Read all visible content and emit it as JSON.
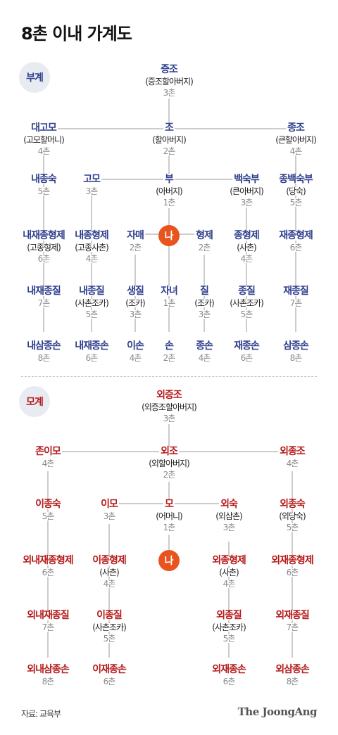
{
  "title": "8촌 이내 가계도",
  "paternal": {
    "label": "부계",
    "nodes": {
      "jeungjo": {
        "name": "증조",
        "sub": "(증조할아버지)",
        "degree": "3촌"
      },
      "daegomo": {
        "name": "대고모",
        "sub": "(고모할머니)",
        "degree": "4촌"
      },
      "jo": {
        "name": "조",
        "sub": "(할아버지)",
        "degree": "2촌"
      },
      "jongjo": {
        "name": "종조",
        "sub": "(큰할아버지)",
        "degree": "4촌"
      },
      "naejongsuk": {
        "name": "내종숙",
        "degree": "5촌"
      },
      "gomo": {
        "name": "고모",
        "degree": "3촌"
      },
      "bu": {
        "name": "부",
        "sub": "(아버지)",
        "degree": "1촌"
      },
      "baeksukbu": {
        "name": "백숙부",
        "sub": "(큰아버지)",
        "degree": "3촌"
      },
      "jongbaeksukbu": {
        "name": "종백숙부",
        "sub": "(당숙)",
        "degree": "5촌"
      },
      "naejaejonghyeongje": {
        "name": "내재종형제",
        "sub": "(고종형제)",
        "degree": "6촌"
      },
      "naejonghyeongje": {
        "name": "내종형제",
        "sub": "(고종사촌)",
        "degree": "4촌"
      },
      "jamae": {
        "name": "자매",
        "degree": "2촌"
      },
      "me": "나",
      "hyeongje": {
        "name": "형제",
        "degree": "2촌"
      },
      "jonghyeongje": {
        "name": "종형제",
        "sub": "(사촌)",
        "degree": "4촌"
      },
      "jaejonghyeongje": {
        "name": "재종형제",
        "degree": "6촌"
      },
      "naejongjil_7": {
        "name": "내재종질",
        "degree": "7촌"
      },
      "naejongjil": {
        "name": "내종질",
        "sub": "(사촌조카)",
        "degree": "5촌"
      },
      "saengjil": {
        "name": "생질",
        "sub": "(조카)",
        "degree": "3촌"
      },
      "janyeo": {
        "name": "자녀",
        "degree": "1촌"
      },
      "jil": {
        "name": "질",
        "sub": "(조카)",
        "degree": "3촌"
      },
      "jongjil": {
        "name": "종질",
        "sub": "(사촌조카)",
        "degree": "5촌"
      },
      "jaejongjil": {
        "name": "재종질",
        "degree": "7촌"
      },
      "naesamjongson": {
        "name": "내삼종손",
        "degree": "8촌"
      },
      "naejaejongson": {
        "name": "내재종손",
        "degree": "6촌"
      },
      "ison": {
        "name": "이손",
        "degree": "4촌"
      },
      "son": {
        "name": "손",
        "degree": "2촌"
      },
      "jongson": {
        "name": "종손",
        "degree": "4촌"
      },
      "jaejongson": {
        "name": "재종손",
        "degree": "6촌"
      },
      "samjongson": {
        "name": "삼종손",
        "degree": "8촌"
      }
    }
  },
  "maternal": {
    "label": "모계",
    "nodes": {
      "oejeungjo": {
        "name": "외증조",
        "sub": "(외증조할아버지)",
        "degree": "3촌"
      },
      "jonimo": {
        "name": "존이모",
        "degree": "4촌"
      },
      "oejo": {
        "name": "외조",
        "sub": "(외할아버지)",
        "degree": "2촌"
      },
      "oejongjo": {
        "name": "외종조",
        "degree": "4촌"
      },
      "ijongsuk": {
        "name": "이종숙",
        "degree": "5촌"
      },
      "imo": {
        "name": "이모",
        "degree": "3촌"
      },
      "mo": {
        "name": "모",
        "sub": "(어머니)",
        "degree": "1촌"
      },
      "oesuk": {
        "name": "외숙",
        "sub": "(외삼촌)",
        "degree": "3촌"
      },
      "oejongsuk": {
        "name": "외종숙",
        "sub": "(외당숙)",
        "degree": "5촌"
      },
      "oenaejaejonghyeongje": {
        "name": "외내재종형제",
        "degree": "6촌"
      },
      "ijonghyeongje": {
        "name": "이종형제",
        "sub": "(사촌)",
        "degree": "4촌"
      },
      "me": "나",
      "oejonghyeongje": {
        "name": "외종형제",
        "sub": "(사촌)",
        "degree": "4촌"
      },
      "oejaejonghyeongje": {
        "name": "외재종형제",
        "degree": "6촌"
      },
      "oenaejaejongjil": {
        "name": "외내재종질",
        "degree": "7촌"
      },
      "ijongjil": {
        "name": "이종질",
        "sub": "(사촌조카)",
        "degree": "5촌"
      },
      "oejongjil": {
        "name": "외종질",
        "sub": "(사촌조카)",
        "degree": "5촌"
      },
      "oejaejongjil": {
        "name": "외재종질",
        "degree": "7촌"
      },
      "oenaesamjongson": {
        "name": "외내삼종손",
        "degree": "8촌"
      },
      "ijaejongson": {
        "name": "이재종손",
        "degree": "6촌"
      },
      "oejaejongson": {
        "name": "외재종손",
        "degree": "6촌"
      },
      "oesamjongson": {
        "name": "외삼종손",
        "degree": "8촌"
      }
    }
  },
  "colors": {
    "paternal": "#2f3f8c",
    "maternal": "#b51a1a",
    "me": "#e9541e",
    "line": "#cccccc"
  },
  "footer": {
    "source": "자료: 교육부",
    "logo": "The JoongAng"
  }
}
